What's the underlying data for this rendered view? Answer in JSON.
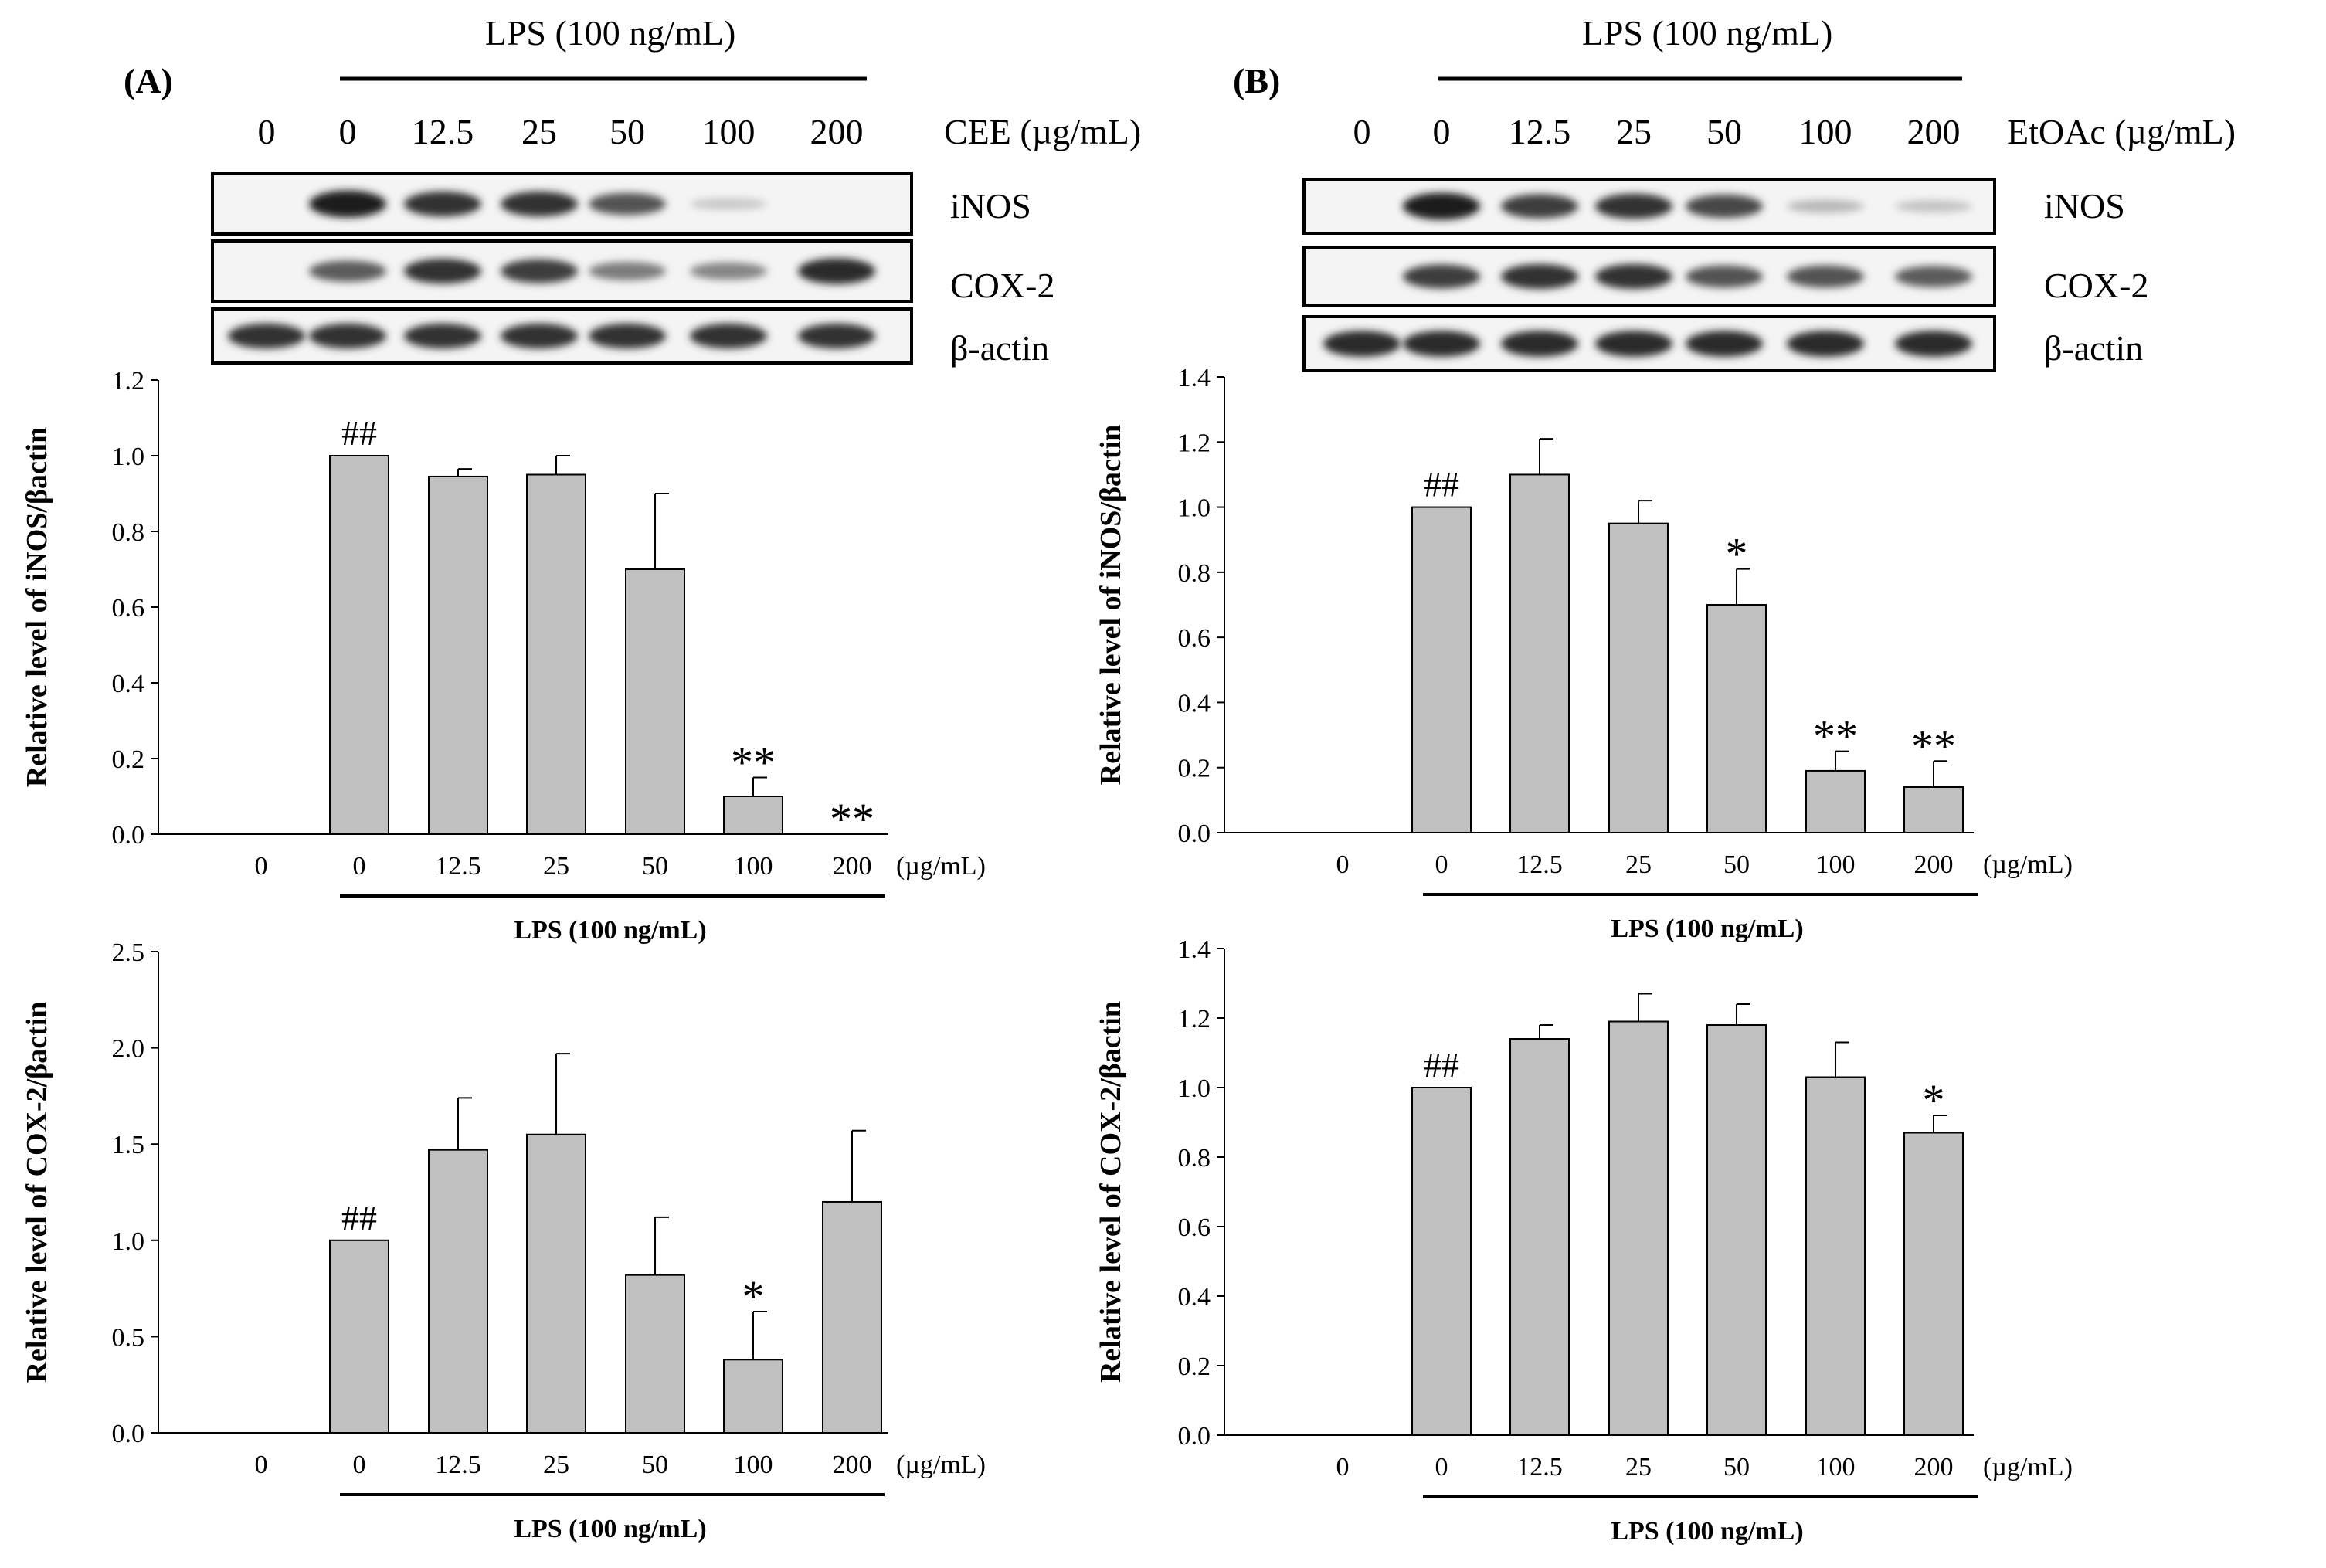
{
  "panels": [
    {
      "id": "A",
      "label": "(A)",
      "lps_label": "LPS (100 ng/mL)",
      "treatment_label": "CEE (µg/mL)",
      "lane_labels": [
        "0",
        "0",
        "12.5",
        "25",
        "50",
        "100",
        "200"
      ],
      "blots": [
        {
          "name": "iNOS",
          "intensities": [
            0.0,
            0.95,
            0.85,
            0.85,
            0.7,
            0.12,
            0.0
          ]
        },
        {
          "name": "COX-2",
          "intensities": [
            0.0,
            0.65,
            0.85,
            0.8,
            0.5,
            0.45,
            0.9
          ]
        },
        {
          "name": "β-actin",
          "intensities": [
            0.85,
            0.85,
            0.85,
            0.85,
            0.85,
            0.85,
            0.85
          ]
        }
      ]
    },
    {
      "id": "B",
      "label": "(B)",
      "lps_label": "LPS (100 ng/mL)",
      "treatment_label": "EtOAc (µg/mL)",
      "lane_labels": [
        "0",
        "0",
        "12.5",
        "25",
        "50",
        "100",
        "200"
      ],
      "blots": [
        {
          "name": "iNOS",
          "intensities": [
            0.0,
            0.95,
            0.8,
            0.85,
            0.75,
            0.2,
            0.15
          ]
        },
        {
          "name": "COX-2",
          "intensities": [
            0.0,
            0.8,
            0.85,
            0.85,
            0.7,
            0.7,
            0.65
          ]
        },
        {
          "name": "β-actin",
          "intensities": [
            0.9,
            0.9,
            0.9,
            0.9,
            0.9,
            0.9,
            0.9
          ]
        }
      ]
    }
  ],
  "chart_data": [
    {
      "panel": "A",
      "type": "bar",
      "ylabel": "Relative level of iNOS/βactin",
      "categories": [
        "0",
        "0",
        "12.5",
        "25",
        "50",
        "100",
        "200"
      ],
      "unit_label": "(µg/mL)",
      "lps_label": "LPS (100 ng/mL)",
      "values": [
        0.0,
        1.0,
        0.945,
        0.95,
        0.7,
        0.1,
        0.0
      ],
      "errors": [
        0.0,
        0.0,
        0.02,
        0.05,
        0.2,
        0.05,
        0.0
      ],
      "annotations": [
        "",
        "##",
        "",
        "",
        "",
        "**",
        "**"
      ],
      "ylim": [
        0,
        1.2
      ],
      "yticks": [
        "0.0",
        "0.2",
        "0.4",
        "0.6",
        "0.8",
        "1.0",
        "1.2"
      ]
    },
    {
      "panel": "A",
      "type": "bar",
      "ylabel": "Relative level of COX-2/βactin",
      "categories": [
        "0",
        "0",
        "12.5",
        "25",
        "50",
        "100",
        "200"
      ],
      "unit_label": "(µg/mL)",
      "lps_label": "LPS (100 ng/mL)",
      "values": [
        0.0,
        1.0,
        1.47,
        1.55,
        0.82,
        0.38,
        1.2
      ],
      "errors": [
        0.0,
        0.0,
        0.27,
        0.42,
        0.3,
        0.25,
        0.37
      ],
      "annotations": [
        "",
        "##",
        "",
        "",
        "",
        "*",
        ""
      ],
      "ylim": [
        0,
        2.5
      ],
      "yticks": [
        "0.0",
        "0.5",
        "1.0",
        "1.5",
        "2.0",
        "2.5"
      ]
    },
    {
      "panel": "B",
      "type": "bar",
      "ylabel": "Relative level of iNOS/βactin",
      "categories": [
        "0",
        "0",
        "12.5",
        "25",
        "50",
        "100",
        "200"
      ],
      "unit_label": "(µg/mL)",
      "lps_label": "LPS (100 ng/mL)",
      "values": [
        0.0,
        1.0,
        1.1,
        0.95,
        0.7,
        0.19,
        0.14
      ],
      "errors": [
        0.0,
        0.0,
        0.11,
        0.07,
        0.11,
        0.06,
        0.08
      ],
      "annotations": [
        "",
        "##",
        "",
        "",
        "*",
        "**",
        "**"
      ],
      "ylim": [
        0,
        1.4
      ],
      "yticks": [
        "0.0",
        "0.2",
        "0.4",
        "0.6",
        "0.8",
        "1.0",
        "1.2",
        "1.4"
      ]
    },
    {
      "panel": "B",
      "type": "bar",
      "ylabel": "Relative level of COX-2/βactin",
      "categories": [
        "0",
        "0",
        "12.5",
        "25",
        "50",
        "100",
        "200"
      ],
      "unit_label": "(µg/mL)",
      "lps_label": "LPS (100 ng/mL)",
      "values": [
        0.0,
        1.0,
        1.14,
        1.19,
        1.18,
        1.03,
        0.87
      ],
      "errors": [
        0.0,
        0.0,
        0.04,
        0.08,
        0.06,
        0.1,
        0.05
      ],
      "annotations": [
        "",
        "##",
        "",
        "",
        "",
        "",
        "*"
      ],
      "ylim": [
        0,
        1.4
      ],
      "yticks": [
        "0.0",
        "0.2",
        "0.4",
        "0.6",
        "0.8",
        "1.0",
        "1.2",
        "1.4"
      ]
    }
  ]
}
